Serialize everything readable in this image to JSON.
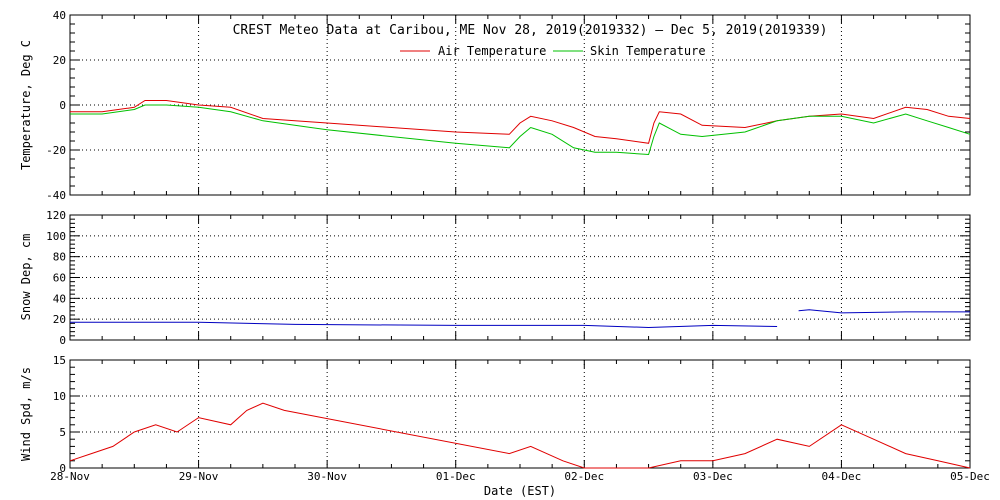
{
  "chart_data": {
    "type": "line",
    "title": "CREST Meteo Data at Caribou, ME   Nov 28, 2019(2019332) — Dec  5, 2019(2019339)",
    "xlabel": "Date (EST)",
    "x_ticks": [
      "28-Nov",
      "29-Nov",
      "30-Nov",
      "01-Dec",
      "02-Dec",
      "03-Dec",
      "04-Dec",
      "05-Dec"
    ],
    "xlim": [
      "2019-11-28 00:00",
      "2019-12-05 00:00"
    ],
    "grid": true,
    "legend_position": "top-center",
    "panels": [
      {
        "ylabel": "Temperature, Deg C",
        "ylim": [
          -40,
          40
        ],
        "y_ticks": [
          -40,
          -20,
          0,
          20,
          40
        ],
        "series": [
          {
            "name": "Air Temperature",
            "color": "#e00000",
            "points": [
              [
                "2019-11-28 00:00",
                -3
              ],
              [
                "2019-11-28 06:00",
                -3
              ],
              [
                "2019-11-28 12:00",
                -1
              ],
              [
                "2019-11-28 14:00",
                2
              ],
              [
                "2019-11-28 18:00",
                2
              ],
              [
                "2019-11-29 00:00",
                0
              ],
              [
                "2019-11-29 06:00",
                -1
              ],
              [
                "2019-11-29 12:00",
                -6
              ],
              [
                "2019-11-30 00:00",
                -8
              ],
              [
                "2019-12-01 00:00",
                -12
              ],
              [
                "2019-12-01 10:00",
                -13
              ],
              [
                "2019-12-01 12:00",
                -8
              ],
              [
                "2019-12-01 14:00",
                -5
              ],
              [
                "2019-12-01 18:00",
                -7
              ],
              [
                "2019-12-01 22:00",
                -10
              ],
              [
                "2019-12-02 02:00",
                -14
              ],
              [
                "2019-12-02 06:00",
                -15
              ],
              [
                "2019-12-02 12:00",
                -17
              ],
              [
                "2019-12-02 13:00",
                -8
              ],
              [
                "2019-12-02 14:00",
                -3
              ],
              [
                "2019-12-02 18:00",
                -4
              ],
              [
                "2019-12-02 22:00",
                -9
              ],
              [
                "2019-12-03 06:00",
                -10
              ],
              [
                "2019-12-03 12:00",
                -7
              ],
              [
                "2019-12-03 18:00",
                -5
              ],
              [
                "2019-12-04 00:00",
                -4
              ],
              [
                "2019-12-04 06:00",
                -6
              ],
              [
                "2019-12-04 12:00",
                -1
              ],
              [
                "2019-12-04 16:00",
                -2
              ],
              [
                "2019-12-04 20:00",
                -5
              ],
              [
                "2019-12-05 00:00",
                -6
              ]
            ]
          },
          {
            "name": "Skin Temperature",
            "color": "#00c000",
            "points": [
              [
                "2019-11-28 00:00",
                -4
              ],
              [
                "2019-11-28 06:00",
                -4
              ],
              [
                "2019-11-28 12:00",
                -2
              ],
              [
                "2019-11-28 14:00",
                0
              ],
              [
                "2019-11-28 18:00",
                0
              ],
              [
                "2019-11-29 00:00",
                -1
              ],
              [
                "2019-11-29 06:00",
                -3
              ],
              [
                "2019-11-29 12:00",
                -7
              ],
              [
                "2019-11-30 00:00",
                -11
              ],
              [
                "2019-12-01 00:00",
                -17
              ],
              [
                "2019-12-01 10:00",
                -19
              ],
              [
                "2019-12-01 12:00",
                -14
              ],
              [
                "2019-12-01 14:00",
                -10
              ],
              [
                "2019-12-01 18:00",
                -13
              ],
              [
                "2019-12-01 22:00",
                -19
              ],
              [
                "2019-12-02 02:00",
                -21
              ],
              [
                "2019-12-02 06:00",
                -21
              ],
              [
                "2019-12-02 12:00",
                -22
              ],
              [
                "2019-12-02 13:00",
                -14
              ],
              [
                "2019-12-02 14:00",
                -8
              ],
              [
                "2019-12-02 18:00",
                -13
              ],
              [
                "2019-12-02 22:00",
                -14
              ],
              [
                "2019-12-03 06:00",
                -12
              ],
              [
                "2019-12-03 12:00",
                -7
              ],
              [
                "2019-12-03 18:00",
                -5
              ],
              [
                "2019-12-04 00:00",
                -5
              ],
              [
                "2019-12-04 06:00",
                -8
              ],
              [
                "2019-12-04 12:00",
                -4
              ],
              [
                "2019-12-04 16:00",
                -7
              ],
              [
                "2019-12-04 20:00",
                -10
              ],
              [
                "2019-12-05 00:00",
                -13
              ]
            ]
          }
        ]
      },
      {
        "ylabel": "Snow Dep, cm",
        "ylim": [
          0,
          120
        ],
        "y_ticks": [
          0,
          20,
          40,
          60,
          80,
          100,
          120
        ],
        "series": [
          {
            "name": "",
            "color": "#0000c0",
            "points": [
              [
                "2019-11-28 00:00",
                17
              ],
              [
                "2019-11-29 00:00",
                17
              ],
              [
                "2019-11-29 18:00",
                15
              ],
              [
                "2019-12-01 00:00",
                14
              ],
              [
                "2019-12-02 00:00",
                14
              ],
              [
                "2019-12-02 12:00",
                12
              ],
              [
                "2019-12-03 00:00",
                14
              ],
              [
                "2019-12-03 12:00",
                13
              ]
            ]
          },
          {
            "name": "",
            "color": "#0000c0",
            "points": [
              [
                "2019-12-03 16:00",
                28
              ],
              [
                "2019-12-03 18:00",
                29
              ],
              [
                "2019-12-04 00:00",
                26
              ],
              [
                "2019-12-04 12:00",
                27
              ],
              [
                "2019-12-05 00:00",
                27
              ]
            ]
          }
        ]
      },
      {
        "ylabel": "Wind Spd, m/s",
        "ylim": [
          0,
          15
        ],
        "y_ticks": [
          0,
          5,
          10,
          15
        ],
        "series": [
          {
            "name": "",
            "color": "#e00000",
            "points": [
              [
                "2019-11-28 00:00",
                1
              ],
              [
                "2019-11-28 04:00",
                2
              ],
              [
                "2019-11-28 08:00",
                3
              ],
              [
                "2019-11-28 12:00",
                5
              ],
              [
                "2019-11-28 16:00",
                6
              ],
              [
                "2019-11-28 20:00",
                5
              ],
              [
                "2019-11-29 00:00",
                7
              ],
              [
                "2019-11-29 06:00",
                6
              ],
              [
                "2019-11-29 09:00",
                8
              ],
              [
                "2019-11-29 12:00",
                9
              ],
              [
                "2019-11-29 16:00",
                8
              ],
              [
                "2019-12-01 10:00",
                2
              ],
              [
                "2019-12-01 14:00",
                3
              ],
              [
                "2019-12-01 20:00",
                1
              ],
              [
                "2019-12-02 00:00",
                0
              ],
              [
                "2019-12-02 12:00",
                0
              ],
              [
                "2019-12-02 18:00",
                1
              ],
              [
                "2019-12-03 00:00",
                1
              ],
              [
                "2019-12-03 06:00",
                2
              ],
              [
                "2019-12-03 12:00",
                4
              ],
              [
                "2019-12-03 18:00",
                3
              ],
              [
                "2019-12-04 00:00",
                6
              ],
              [
                "2019-12-04 06:00",
                4
              ],
              [
                "2019-12-04 12:00",
                2
              ],
              [
                "2019-12-04 18:00",
                1
              ],
              [
                "2019-12-05 00:00",
                0
              ]
            ]
          }
        ]
      }
    ]
  }
}
